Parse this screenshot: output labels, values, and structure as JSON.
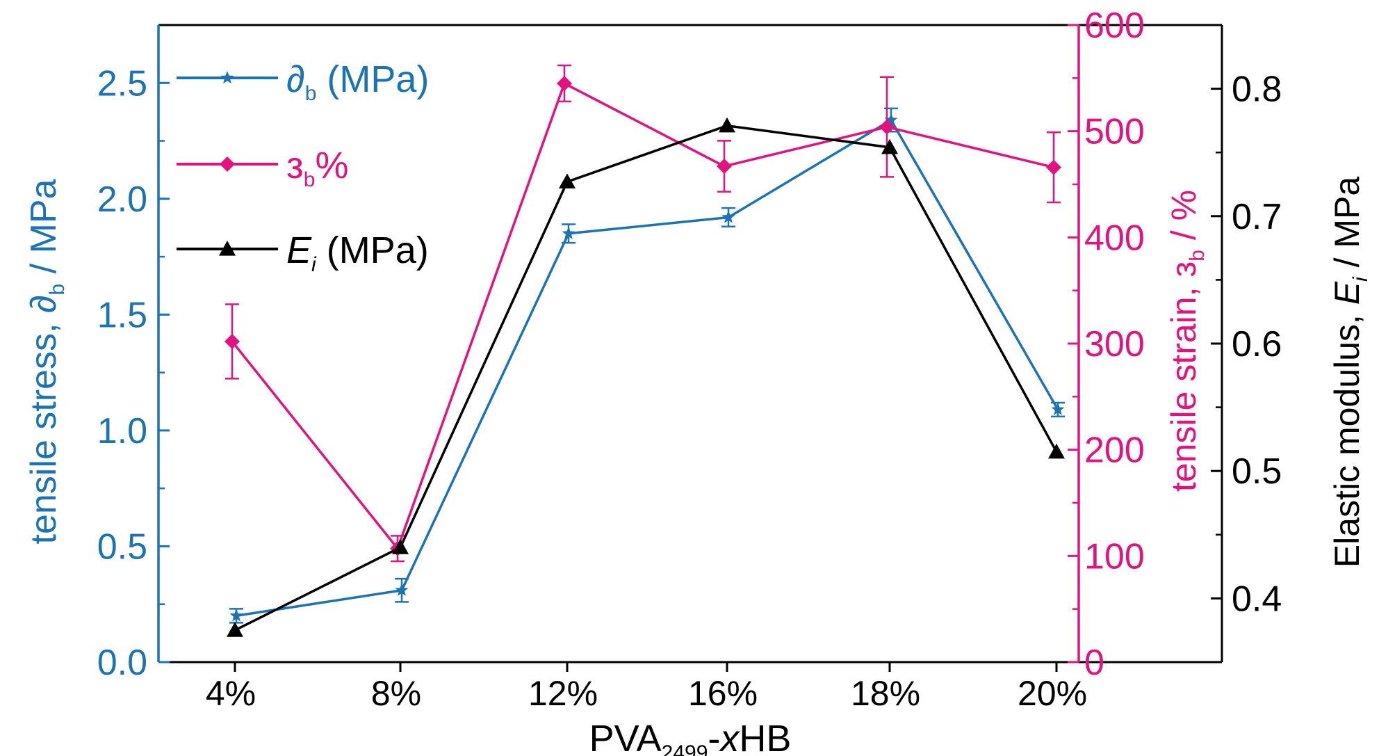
{
  "colors": {
    "stress": "#1a73b5",
    "strain": "#e4127f",
    "modulus": "#000000",
    "frame": "#000000"
  },
  "chart_data": {
    "type": "line",
    "categories": [
      "4%",
      "8%",
      "12%",
      "16%",
      "18%",
      "20%"
    ],
    "xlabel": {
      "main": "PVA",
      "sub": "2499",
      "dash": "-",
      "x": "x",
      "rest": "HB"
    },
    "axes": {
      "left": {
        "label_prefix": "tensile stress, ",
        "symbol": "∂",
        "symbol_sub": "b",
        "label_suffix": " / MPa",
        "ylim": [
          0,
          2.75
        ],
        "ticks": [
          0.0,
          0.5,
          1.0,
          1.5,
          2.0,
          2.5
        ],
        "tick_labels": [
          "0.0",
          "0.5",
          "1.0",
          "1.5",
          "2.0",
          "2.5"
        ]
      },
      "right_strain": {
        "label_prefix": "tensile strain, ",
        "symbol": "з",
        "symbol_sub": "b",
        "label_suffix": " / %",
        "ylim": [
          0,
          600
        ],
        "ticks": [
          0,
          100,
          200,
          300,
          400,
          500,
          600
        ],
        "tick_labels": [
          "0",
          "100",
          "200",
          "300",
          "400",
          "500",
          "600"
        ]
      },
      "right_modulus": {
        "label_prefix": "Elastic modulus, ",
        "symbol": "E",
        "symbol_sub": "i",
        "label_suffix": " / MPa",
        "ylim": [
          0.35,
          0.85
        ],
        "ticks": [
          0.4,
          0.5,
          0.6,
          0.7,
          0.8
        ],
        "tick_labels": [
          "0.4",
          "0.5",
          "0.6",
          "0.7",
          "0.8"
        ]
      }
    },
    "series": [
      {
        "key": "stress",
        "axis": "left",
        "marker": "star",
        "legend": {
          "symbol": "∂",
          "sub": "b",
          "text": " (MPa)"
        },
        "values": [
          0.2,
          0.31,
          1.85,
          1.92,
          2.34,
          1.09
        ],
        "errors": [
          0.03,
          0.05,
          0.04,
          0.04,
          0.05,
          0.03
        ]
      },
      {
        "key": "strain",
        "axis": "right_strain",
        "marker": "diamond",
        "legend": {
          "symbol": "з",
          "sub": "b",
          "text": "%"
        },
        "values": [
          302,
          107,
          545,
          467,
          504,
          466
        ],
        "errors": [
          35,
          12,
          17,
          24,
          47,
          33
        ]
      },
      {
        "key": "modulus",
        "axis": "right_modulus",
        "marker": "triangle",
        "legend": {
          "symbol": "E",
          "sub": "i",
          "text": " (MPa)"
        },
        "values": [
          0.375,
          0.44,
          0.727,
          0.771,
          0.754,
          0.515
        ],
        "errors": [
          0,
          0,
          0,
          0,
          0,
          0
        ]
      }
    ]
  }
}
